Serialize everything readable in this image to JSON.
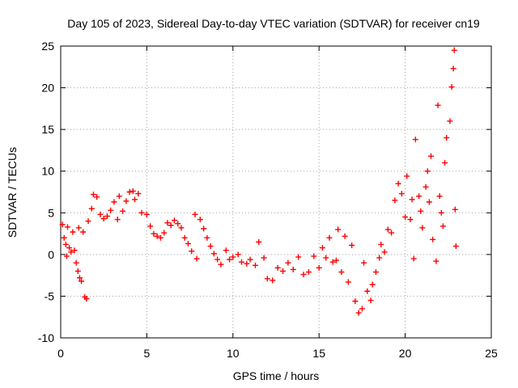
{
  "chart_data": {
    "type": "scatter",
    "title": "Day 105 of 2023, Sidereal Day-to-day VTEC variation (SDTVAR) for receiver cn19",
    "xlabel": "GPS time / hours",
    "ylabel": "SDTVAR / TECUs",
    "xlim": [
      0,
      25
    ],
    "ylim": [
      -10,
      25
    ],
    "xticks": [
      "0",
      "5",
      "10",
      "15",
      "20",
      "25"
    ],
    "yticks": [
      "-10",
      "-5",
      "0",
      "5",
      "10",
      "15",
      "20",
      "25"
    ],
    "grid": true,
    "marker": "+",
    "color": "#ff0000",
    "series": [
      {
        "name": "SDTVAR",
        "points": [
          [
            0.1,
            3.6
          ],
          [
            0.2,
            2.0
          ],
          [
            0.3,
            1.2
          ],
          [
            0.35,
            -0.2
          ],
          [
            0.4,
            3.3
          ],
          [
            0.5,
            0.8
          ],
          [
            0.6,
            0.3
          ],
          [
            0.7,
            2.7
          ],
          [
            0.8,
            0.5
          ],
          [
            0.9,
            -1.0
          ],
          [
            1.0,
            -2.0
          ],
          [
            1.05,
            3.2
          ],
          [
            1.1,
            -2.8
          ],
          [
            1.2,
            -3.2
          ],
          [
            1.3,
            2.7
          ],
          [
            1.4,
            -5.1
          ],
          [
            1.5,
            -5.3
          ],
          [
            1.6,
            4.0
          ],
          [
            1.8,
            5.5
          ],
          [
            1.9,
            7.2
          ],
          [
            2.1,
            6.9
          ],
          [
            2.3,
            4.8
          ],
          [
            2.5,
            4.3
          ],
          [
            2.7,
            4.6
          ],
          [
            2.9,
            5.3
          ],
          [
            3.1,
            6.3
          ],
          [
            3.3,
            4.2
          ],
          [
            3.4,
            7.0
          ],
          [
            3.6,
            5.2
          ],
          [
            3.8,
            6.4
          ],
          [
            4.0,
            7.5
          ],
          [
            4.2,
            7.6
          ],
          [
            4.3,
            6.6
          ],
          [
            4.5,
            7.3
          ],
          [
            4.7,
            5.0
          ],
          [
            5.0,
            4.8
          ],
          [
            5.2,
            3.4
          ],
          [
            5.4,
            2.5
          ],
          [
            5.6,
            2.2
          ],
          [
            5.8,
            2.0
          ],
          [
            6.0,
            2.6
          ],
          [
            6.2,
            3.8
          ],
          [
            6.4,
            3.5
          ],
          [
            6.6,
            4.1
          ],
          [
            6.8,
            3.7
          ],
          [
            7.0,
            3.2
          ],
          [
            7.2,
            2.0
          ],
          [
            7.4,
            1.3
          ],
          [
            7.6,
            0.4
          ],
          [
            7.8,
            4.8
          ],
          [
            7.9,
            -0.5
          ],
          [
            8.1,
            4.2
          ],
          [
            8.3,
            3.1
          ],
          [
            8.5,
            2.0
          ],
          [
            8.7,
            1.0
          ],
          [
            8.9,
            0.1
          ],
          [
            9.1,
            -0.6
          ],
          [
            9.3,
            -1.2
          ],
          [
            9.6,
            0.5
          ],
          [
            9.8,
            -0.6
          ],
          [
            10.0,
            -0.3
          ],
          [
            10.3,
            0.0
          ],
          [
            10.5,
            -0.9
          ],
          [
            10.8,
            -1.1
          ],
          [
            11.0,
            -0.6
          ],
          [
            11.3,
            -1.3
          ],
          [
            11.5,
            1.5
          ],
          [
            11.8,
            -0.4
          ],
          [
            12.0,
            -2.9
          ],
          [
            12.3,
            -3.1
          ],
          [
            12.6,
            -1.6
          ],
          [
            12.9,
            -2.0
          ],
          [
            13.2,
            -1.0
          ],
          [
            13.5,
            -1.8
          ],
          [
            13.8,
            -0.3
          ],
          [
            14.1,
            -2.4
          ],
          [
            14.4,
            -2.1
          ],
          [
            14.7,
            -0.2
          ],
          [
            15.0,
            -1.6
          ],
          [
            15.2,
            0.8
          ],
          [
            15.4,
            -0.4
          ],
          [
            15.6,
            2.0
          ],
          [
            15.8,
            -0.9
          ],
          [
            16.0,
            -0.7
          ],
          [
            16.1,
            3.0
          ],
          [
            16.3,
            -2.1
          ],
          [
            16.5,
            2.2
          ],
          [
            16.7,
            -3.3
          ],
          [
            16.9,
            1.1
          ],
          [
            17.1,
            -5.6
          ],
          [
            17.3,
            -7.0
          ],
          [
            17.5,
            -6.5
          ],
          [
            17.6,
            -1.0
          ],
          [
            17.8,
            -4.4
          ],
          [
            18.0,
            -5.5
          ],
          [
            18.1,
            -3.6
          ],
          [
            18.3,
            -2.1
          ],
          [
            18.5,
            -0.4
          ],
          [
            18.6,
            1.2
          ],
          [
            18.8,
            0.3
          ],
          [
            19.0,
            3.0
          ],
          [
            19.2,
            2.6
          ],
          [
            19.4,
            6.5
          ],
          [
            19.6,
            8.5
          ],
          [
            19.8,
            7.3
          ],
          [
            20.0,
            4.5
          ],
          [
            20.1,
            9.4
          ],
          [
            20.3,
            4.2
          ],
          [
            20.4,
            6.6
          ],
          [
            20.5,
            -0.5
          ],
          [
            20.6,
            13.8
          ],
          [
            20.8,
            7.0
          ],
          [
            20.9,
            5.2
          ],
          [
            21.0,
            3.2
          ],
          [
            21.2,
            8.1
          ],
          [
            21.3,
            10.0
          ],
          [
            21.4,
            6.3
          ],
          [
            21.5,
            11.8
          ],
          [
            21.6,
            1.8
          ],
          [
            21.8,
            -0.8
          ],
          [
            21.9,
            17.9
          ],
          [
            22.0,
            7.0
          ],
          [
            22.1,
            5.0
          ],
          [
            22.2,
            3.4
          ],
          [
            22.3,
            11.0
          ],
          [
            22.4,
            14.0
          ],
          [
            22.6,
            16.0
          ],
          [
            22.7,
            20.1
          ],
          [
            22.8,
            22.3
          ],
          [
            22.85,
            24.5
          ],
          [
            22.9,
            5.4
          ],
          [
            22.95,
            1.0
          ]
        ]
      }
    ]
  }
}
